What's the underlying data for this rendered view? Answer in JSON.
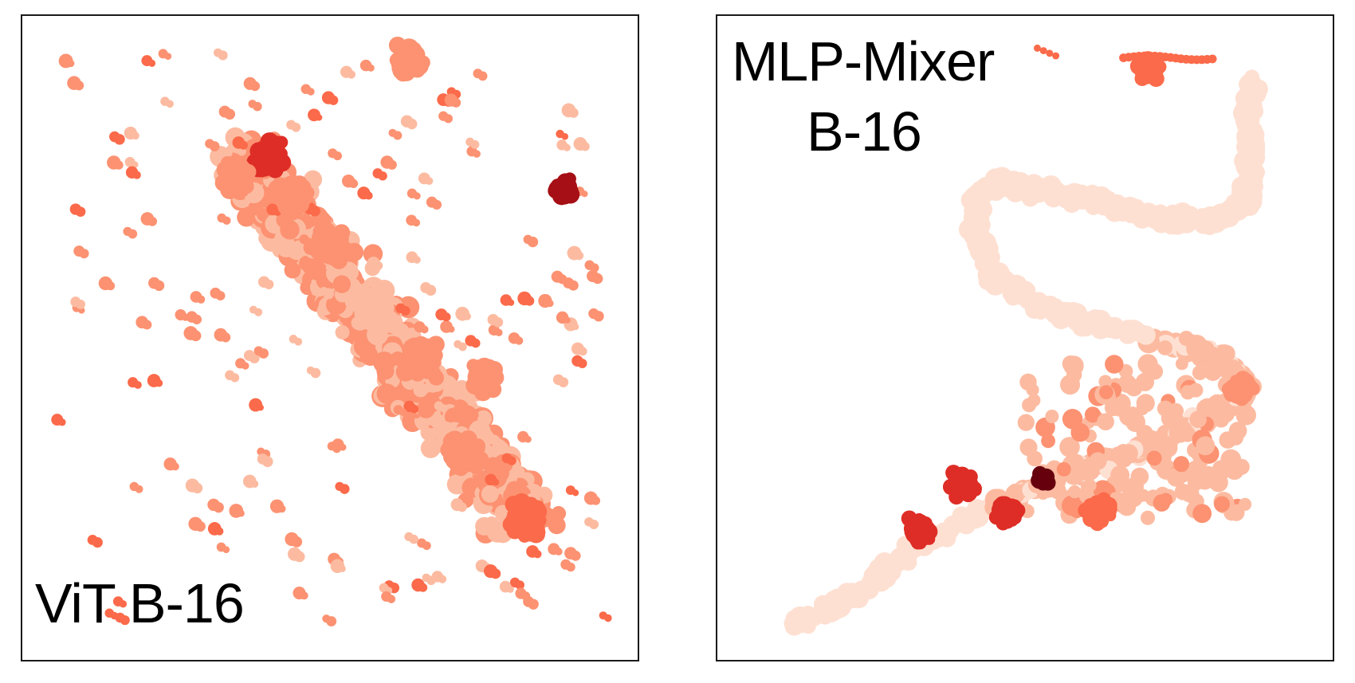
{
  "chart_data": [
    {
      "type": "scatter",
      "title": "ViT B-16",
      "xlabel": "",
      "ylabel": "",
      "grid": false,
      "legend": "none",
      "colormap": "Reds",
      "colors": {
        "lightest": "#fee0d2",
        "light": "#fcbba1",
        "mid": "#fc9272",
        "strong": "#fb6a4a",
        "dark": "#de2d26",
        "darkest": "#a50f15"
      },
      "clusters": [
        {
          "x": 0.4,
          "y": 0.78,
          "level": 0.8
        },
        {
          "x": 0.35,
          "y": 0.75,
          "level": 0.45
        },
        {
          "x": 0.44,
          "y": 0.72,
          "level": 0.35
        },
        {
          "x": 0.5,
          "y": 0.64,
          "level": 0.3
        },
        {
          "x": 0.57,
          "y": 0.55,
          "level": 0.28
        },
        {
          "x": 0.65,
          "y": 0.47,
          "level": 0.32
        },
        {
          "x": 0.75,
          "y": 0.44,
          "level": 0.45
        },
        {
          "x": 0.72,
          "y": 0.32,
          "level": 0.38
        },
        {
          "x": 0.82,
          "y": 0.22,
          "level": 0.5
        },
        {
          "x": 0.88,
          "y": 0.73,
          "level": 0.95
        },
        {
          "x": 0.63,
          "y": 0.93,
          "level": 0.4
        }
      ]
    },
    {
      "type": "scatter",
      "title_lines": [
        "MLP-Mixer",
        "B-16"
      ],
      "xlabel": "",
      "ylabel": "",
      "grid": false,
      "legend": "none",
      "colormap": "Reds",
      "colors": {
        "lightest": "#fee0d2",
        "light": "#fcbba1",
        "mid": "#fc9272",
        "strong": "#fb6a4a",
        "dark": "#de2d26",
        "darkest": "#67000d"
      },
      "clusters": [
        {
          "x": 0.4,
          "y": 0.27,
          "level": 0.75
        },
        {
          "x": 0.53,
          "y": 0.28,
          "level": 0.95
        },
        {
          "x": 0.47,
          "y": 0.23,
          "level": 0.7
        },
        {
          "x": 0.33,
          "y": 0.2,
          "level": 0.78
        },
        {
          "x": 0.62,
          "y": 0.23,
          "level": 0.5
        },
        {
          "x": 0.85,
          "y": 0.42,
          "level": 0.4
        },
        {
          "x": 0.7,
          "y": 0.92,
          "level": 0.6
        }
      ]
    }
  ],
  "panels": {
    "left_label": "ViT B-16",
    "right_label_line1": "MLP-Mixer",
    "right_label_line2": "B-16"
  }
}
